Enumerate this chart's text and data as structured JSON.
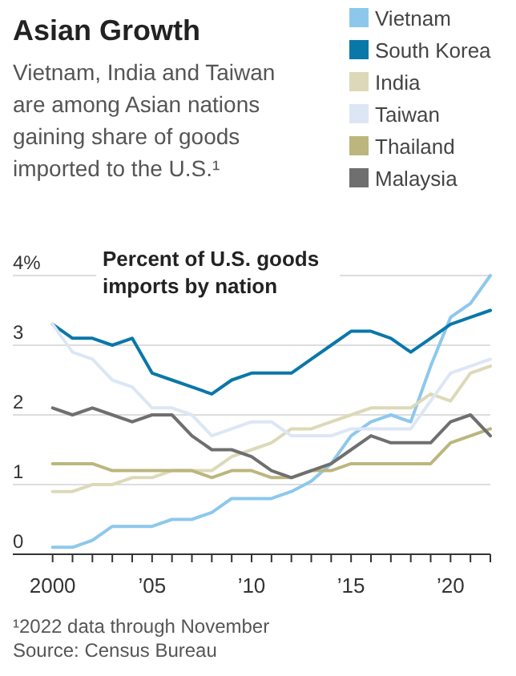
{
  "chart_data": {
    "type": "line",
    "title": "Asian Growth",
    "subtitle": "Vietnam, India and Taiwan are among Asian nations gaining share of goods imported to the U.S.¹",
    "ylabel": "Percent of U.S. goods imports by nation",
    "annotations": [
      "¹2022 data through November",
      "Source: Census Bureau"
    ],
    "x": [
      2000,
      2001,
      2002,
      2003,
      2004,
      2005,
      2006,
      2007,
      2008,
      2009,
      2010,
      2011,
      2012,
      2013,
      2014,
      2015,
      2016,
      2017,
      2018,
      2019,
      2020,
      2021,
      2022
    ],
    "series": [
      {
        "name": "Vietnam",
        "color": "#8dc8ec",
        "values": [
          0.1,
          0.1,
          0.2,
          0.4,
          0.4,
          0.4,
          0.5,
          0.5,
          0.6,
          0.8,
          0.8,
          0.8,
          0.9,
          1.05,
          1.3,
          1.7,
          1.9,
          2.0,
          1.9,
          2.7,
          3.4,
          3.6,
          4.0
        ]
      },
      {
        "name": "South Korea",
        "color": "#0a77a9",
        "values": [
          3.3,
          3.1,
          3.1,
          3.0,
          3.1,
          2.6,
          2.5,
          2.4,
          2.3,
          2.5,
          2.6,
          2.6,
          2.6,
          2.8,
          3.0,
          3.2,
          3.2,
          3.1,
          2.9,
          3.1,
          3.3,
          3.4,
          3.5
        ]
      },
      {
        "name": "India",
        "color": "#ddd9b8",
        "values": [
          0.9,
          0.9,
          1.0,
          1.0,
          1.1,
          1.1,
          1.2,
          1.2,
          1.2,
          1.4,
          1.5,
          1.6,
          1.8,
          1.8,
          1.9,
          2.0,
          2.1,
          2.1,
          2.1,
          2.3,
          2.2,
          2.6,
          2.7
        ]
      },
      {
        "name": "Taiwan",
        "color": "#dde6f5",
        "values": [
          3.3,
          2.9,
          2.8,
          2.5,
          2.4,
          2.1,
          2.1,
          2.0,
          1.7,
          1.8,
          1.9,
          1.9,
          1.7,
          1.7,
          1.7,
          1.8,
          1.8,
          1.8,
          1.8,
          2.2,
          2.6,
          2.7,
          2.8
        ]
      },
      {
        "name": "Thailand",
        "color": "#bcb67e",
        "values": [
          1.3,
          1.3,
          1.3,
          1.2,
          1.2,
          1.2,
          1.2,
          1.2,
          1.1,
          1.2,
          1.2,
          1.1,
          1.1,
          1.2,
          1.2,
          1.3,
          1.3,
          1.3,
          1.3,
          1.3,
          1.6,
          1.7,
          1.8
        ]
      },
      {
        "name": "Malaysia",
        "color": "#6f6f6f",
        "values": [
          2.1,
          2.0,
          2.1,
          2.0,
          1.9,
          2.0,
          2.0,
          1.7,
          1.5,
          1.5,
          1.4,
          1.2,
          1.1,
          1.2,
          1.3,
          1.5,
          1.7,
          1.6,
          1.6,
          1.6,
          1.9,
          2.0,
          1.7
        ]
      }
    ],
    "xlim": [
      1998,
      2022
    ],
    "xticks": [
      2000,
      {
        "value": 2001,
        "label": null
      },
      {
        "value": 2002,
        "label": null
      },
      {
        "value": 2003,
        "label": null
      },
      {
        "value": 2004,
        "label": null
      },
      {
        "value": 2005,
        "label": "’05"
      },
      {
        "value": 2006,
        "label": null
      },
      {
        "value": 2007,
        "label": null
      },
      {
        "value": 2008,
        "label": null
      },
      {
        "value": 2009,
        "label": null
      },
      {
        "value": 2010,
        "label": "’10"
      },
      {
        "value": 2011,
        "label": null
      },
      {
        "value": 2012,
        "label": null
      },
      {
        "value": 2013,
        "label": null
      },
      {
        "value": 2014,
        "label": null
      },
      {
        "value": 2015,
        "label": "’15"
      },
      {
        "value": 2016,
        "label": null
      },
      {
        "value": 2017,
        "label": null
      },
      {
        "value": 2018,
        "label": null
      },
      {
        "value": 2019,
        "label": null
      },
      {
        "value": 2020,
        "label": "’20"
      },
      {
        "value": 2021,
        "label": null
      },
      {
        "value": 2022,
        "label": null
      }
    ],
    "ylim": [
      0,
      4
    ],
    "yticks": [
      0,
      1,
      2,
      3,
      {
        "value": 4,
        "label": "4%"
      }
    ],
    "grid": "y",
    "legend": "top right",
    "marker": "none",
    "line_style": "solid"
  }
}
